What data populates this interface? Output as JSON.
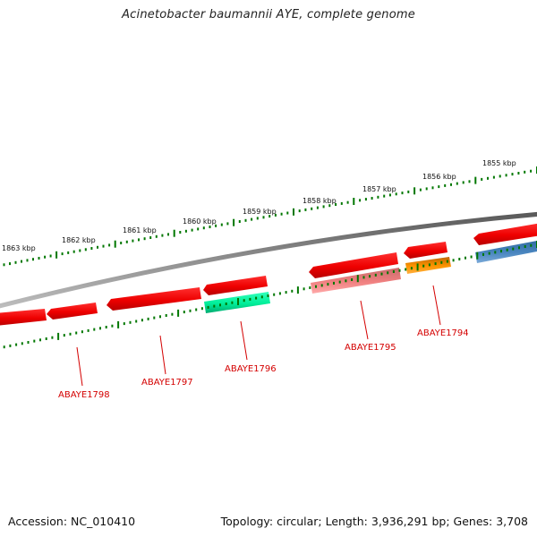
{
  "title": "Acinetobacter baumannii AYE, complete genome",
  "footer": {
    "accession": "Accession: NC_010410",
    "summary": "Topology: circular; Length: 3,936,291 bp; Genes: 3,708"
  },
  "colors": {
    "backbone": "#808080",
    "tick": "#007700",
    "gene_default": "#ff0000",
    "label": "#d40000"
  },
  "scale": {
    "unit": "kbp",
    "labels": [
      "1855 kbp",
      "1856 kbp",
      "1857 kbp",
      "1858 kbp",
      "1859 kbp",
      "1860 kbp",
      "1861 kbp",
      "1862 kbp",
      "1863 kbp"
    ]
  },
  "genes": [
    {
      "name": "ABAYE1798",
      "color": "#ff0000",
      "labelled": true
    },
    {
      "name": "ABAYE1797",
      "color": "#ff0000",
      "labelled": true
    },
    {
      "name": "ABAYE1796",
      "color": "#00ee99",
      "labelled": true
    },
    {
      "name": "ABAYE1795",
      "color": "#f08080",
      "labelled": true
    },
    {
      "name": "ABAYE1794",
      "color": "#ff8c00",
      "labelled": true
    }
  ]
}
